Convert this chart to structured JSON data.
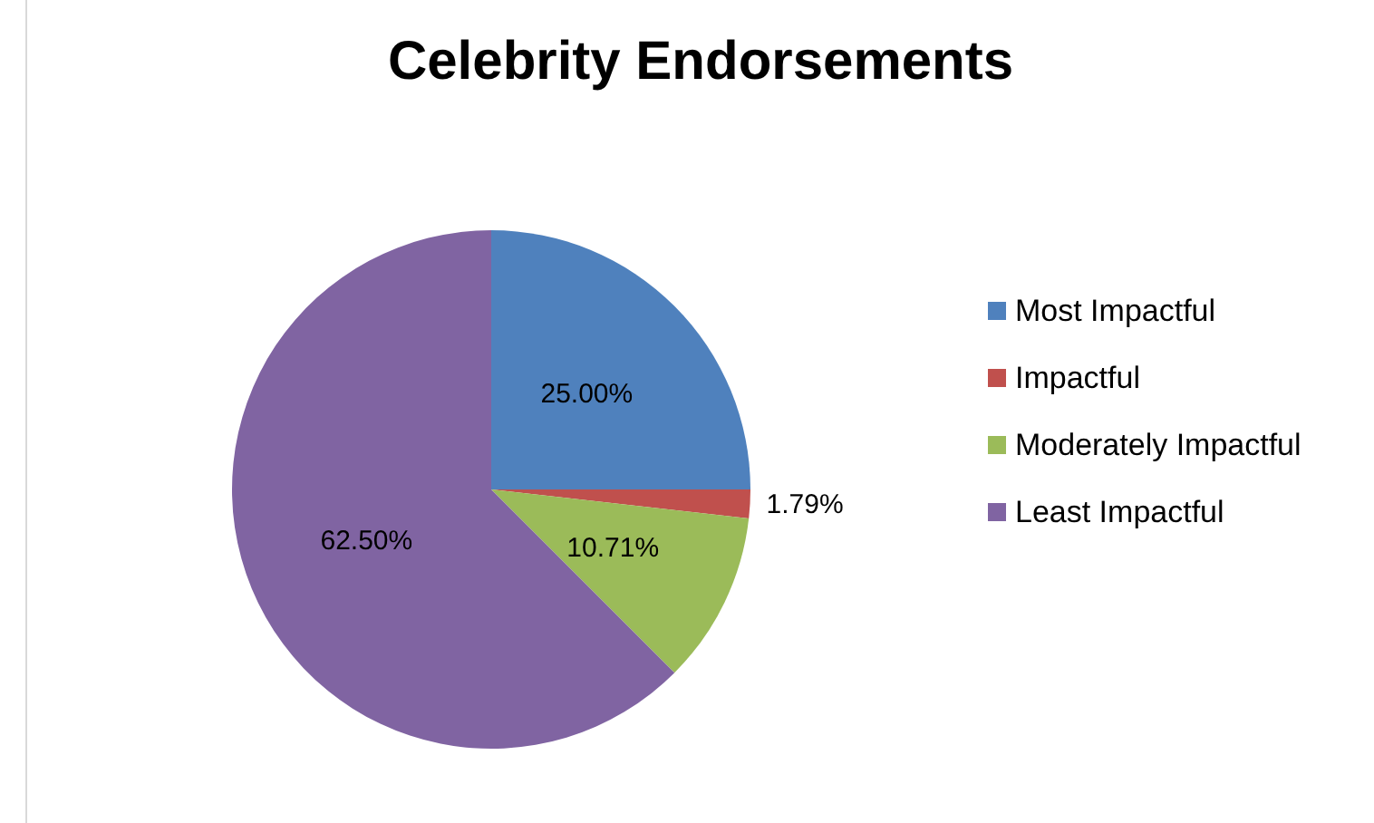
{
  "chart_data": {
    "type": "pie",
    "title": "Celebrity Endorsements",
    "categories": [
      "Most Impactful",
      "Impactful",
      "Moderately Impactful",
      "Least Impactful"
    ],
    "values": [
      25.0,
      1.79,
      10.71,
      62.5
    ],
    "colors": [
      "#4f81bd",
      "#c0504d",
      "#9bbb59",
      "#8064a2"
    ],
    "value_labels": [
      "25.00%",
      "1.79%",
      "10.71%",
      "62.50%"
    ],
    "legend": "right"
  }
}
